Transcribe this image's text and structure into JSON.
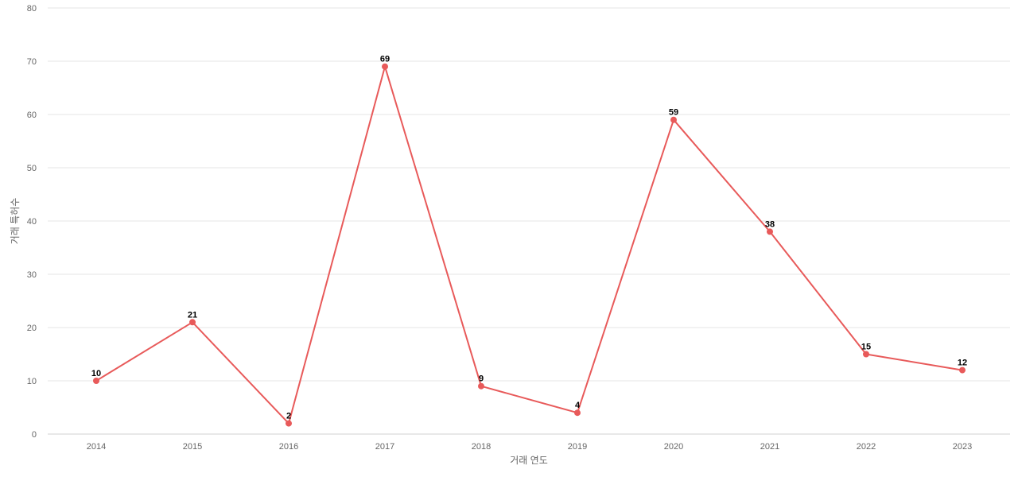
{
  "chart_data": {
    "type": "line",
    "title": "",
    "xlabel": "거래 연도",
    "ylabel": "거래 특허수",
    "categories": [
      "2014",
      "2015",
      "2016",
      "2017",
      "2018",
      "2019",
      "2020",
      "2021",
      "2022",
      "2023"
    ],
    "series": [
      {
        "values": [
          10,
          21,
          2,
          69,
          9,
          4,
          59,
          38,
          15,
          12
        ],
        "color": "#e85a5a"
      }
    ],
    "ylim": [
      0,
      80
    ],
    "yticks": [
      0,
      10,
      20,
      30,
      40,
      50,
      60,
      70,
      80
    ],
    "grid": true,
    "legend": "none",
    "data_labels": true
  }
}
